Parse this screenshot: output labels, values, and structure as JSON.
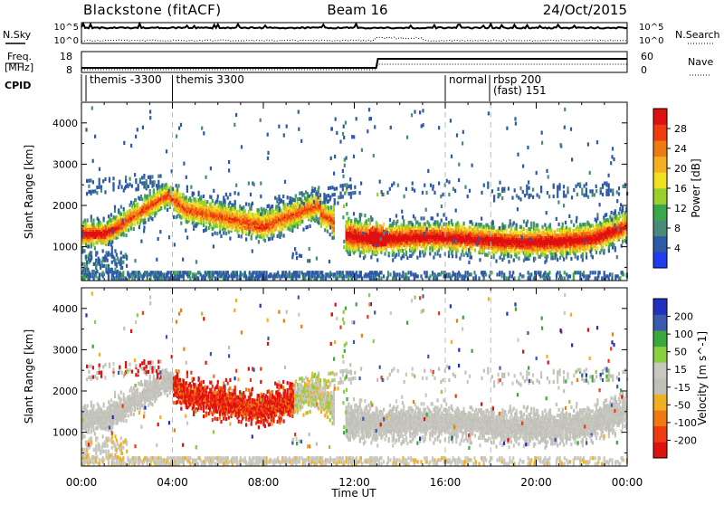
{
  "header": {
    "station": "Blackstone (fitACF)",
    "beam": "Beam 16",
    "date": "24/Oct/2015"
  },
  "noise_panel": {
    "left_label": "N.Sky",
    "right_label": "N.Search",
    "left_ticks": [
      "10^5",
      "10^0"
    ],
    "right_ticks": [
      "10^5",
      "10^0"
    ]
  },
  "freq_panel": {
    "left_label_1": "Freq.",
    "left_label_2": "[MHz]",
    "right_label": "Nave",
    "left_ticks": [
      "18",
      "8"
    ],
    "right_ticks": [
      "60",
      "0"
    ]
  },
  "cpid_panel": {
    "label": "CPID",
    "programs": [
      {
        "start_hour": 0.2,
        "lines": [
          "themis -3300"
        ]
      },
      {
        "start_hour": 4.0,
        "lines": [
          "themis 3300"
        ]
      },
      {
        "start_hour": 16.0,
        "lines": [
          "normal"
        ]
      },
      {
        "start_hour": 17.95,
        "lines": [
          "rbsp 200",
          "(fast) 151"
        ]
      }
    ]
  },
  "time_axis": {
    "label": "Time UT",
    "ticks": [
      "00:00",
      "04:00",
      "08:00",
      "12:00",
      "16:00",
      "20:00",
      "00:00"
    ]
  },
  "colors": {
    "power": [
      "#1f3cf0",
      "#2d5aa8",
      "#4a8a7a",
      "#3aa84a",
      "#9ad02a",
      "#f0e020",
      "#f5b020",
      "#f07a10",
      "#f03a10",
      "#e01010"
    ],
    "velocity": [
      "#2030c0",
      "#3a5ab0",
      "#3aa83a",
      "#8ad040",
      "#c8c8c0",
      "#c0c0b8",
      "#f0b020",
      "#f07a10",
      "#f03a10",
      "#e01010"
    ]
  },
  "chart_data": [
    {
      "type": "heatmap",
      "name": "power",
      "ylabel": "Slant Range [km]",
      "xlabel": "Time UT",
      "xlim": [
        0,
        24
      ],
      "ylim": [
        180,
        4500
      ],
      "yticks": [
        "1000",
        "2000",
        "3000",
        "4000"
      ],
      "colorbar_label": "Power [dB]",
      "colorbar_ticks": [
        "28",
        "24",
        "20",
        "16",
        "12",
        "8",
        "4"
      ],
      "colorbar_range": [
        0,
        30
      ],
      "dashed_time_markers": [
        4.0,
        16.0,
        18.0
      ]
    },
    {
      "type": "heatmap",
      "name": "velocity",
      "ylabel": "Slant Range [km]",
      "xlabel": "Time UT",
      "xlim": [
        0,
        24
      ],
      "ylim": [
        180,
        4500
      ],
      "yticks": [
        "1000",
        "2000",
        "3000",
        "4000"
      ],
      "colorbar_label": "Velocity [m s^-1]",
      "colorbar_ticks": [
        "200",
        "100",
        "50",
        "15",
        "-15",
        "-50",
        "-100",
        "-200"
      ],
      "colorbar_range": [
        -250,
        250
      ],
      "dashed_time_markers": [
        4.0,
        16.0,
        18.0
      ]
    }
  ]
}
